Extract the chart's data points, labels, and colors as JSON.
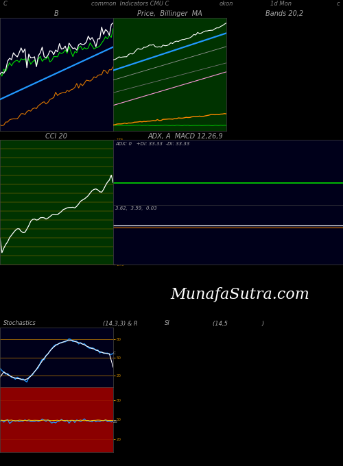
{
  "title": "common  Indicators CMU C",
  "subtitle_left": "C",
  "subtitle_mid": "okon",
  "subtitle_right": "1d Mon",
  "subtitle_far_right": "c",
  "bg_color": "#000000",
  "panel1_bg": "#00001a",
  "panel2_bg": "#003300",
  "panel3_bg": "#003300",
  "panel_adx_bg": "#00001a",
  "panel8_bg": "#8B0000",
  "panel1_label": "B",
  "panel2_label": "Price,  Billinger  MA",
  "panel3_label": "Bands 20,2",
  "panel4_label": "CCI 20",
  "panel5_label": "ADX, A  MACD 12,26,9",
  "adx_text": "ADX: 0   +DI: 33.33  -DI: 33.33",
  "macd_text": "3.62,  3.59,  0.03",
  "stoch_label": "Stochastics",
  "stoch_params": "(14,3,3) & R",
  "si_label": "SI",
  "si_params": "(14,5                   )",
  "watermark": "MunafaSutra.com",
  "n_points": 60
}
